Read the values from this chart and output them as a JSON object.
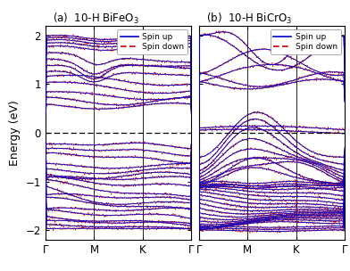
{
  "title_a": "(a)  10-H BiFeO$_3$",
  "title_b": "(b)  10-H BiCrO$_3$",
  "ylabel": "Energy (eV)",
  "xtick_labels": [
    "Γ",
    "M",
    "K",
    "Γ"
  ],
  "ylim": [
    -2.2,
    2.2
  ],
  "yticks": [
    -2,
    -1,
    0,
    1,
    2
  ],
  "fermi_color": "black",
  "spin_up_color": "#0000cc",
  "spin_down_color": "#cc0000",
  "spin_up_label": "Spin up",
  "spin_down_label": "Spin down",
  "lw": 0.6,
  "nk": 300
}
